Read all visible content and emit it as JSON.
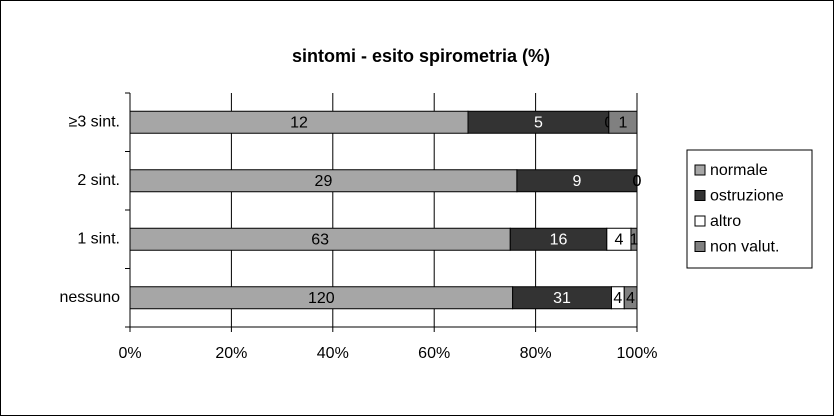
{
  "chart_data": {
    "type": "bar",
    "orientation": "horizontal",
    "stacking": "percent",
    "title": "sintomi - esito spirometria (%)",
    "categories": [
      "≥3 sint.",
      "2 sint.",
      "1 sint.",
      "nessuno"
    ],
    "series": [
      {
        "name": "normale",
        "color": "#a6a6a6",
        "values": [
          12,
          29,
          63,
          120
        ]
      },
      {
        "name": "ostruzione",
        "color": "#333333",
        "values": [
          5,
          9,
          16,
          31
        ]
      },
      {
        "name": "altro",
        "color": "#ffffff",
        "values": [
          0,
          0,
          4,
          4
        ]
      },
      {
        "name": "non valut.",
        "color": "#808080",
        "values": [
          1,
          0,
          1,
          4
        ]
      }
    ],
    "xlim": [
      0,
      100
    ],
    "xticks": [
      {
        "value": 0,
        "label": "0%"
      },
      {
        "value": 20,
        "label": "20%"
      },
      {
        "value": 40,
        "label": "40%"
      },
      {
        "value": 60,
        "label": "60%"
      },
      {
        "value": 80,
        "label": "80%"
      },
      {
        "value": 100,
        "label": "100%"
      }
    ],
    "grid": true,
    "legend": "right"
  }
}
